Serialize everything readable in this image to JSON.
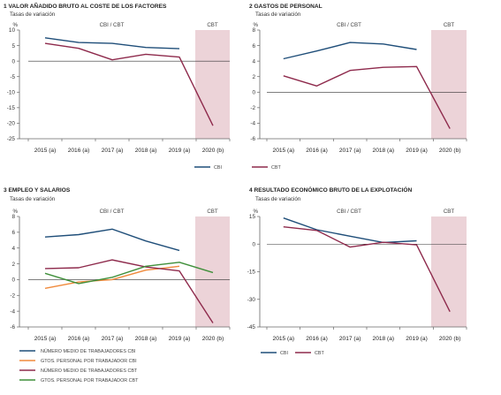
{
  "colors": {
    "cbi": "#1f4e79",
    "cbt": "#8e2a4c",
    "orange": "#f08a3c",
    "green": "#3f8f3a",
    "shade": "#ecd3d8",
    "axis": "#666666",
    "zero": "#333333"
  },
  "chart_data": [
    {
      "type": "line",
      "title": "1 VALOR AÑADIDO BRUTO AL COSTE DE LOS FACTORES",
      "subtitle": "Tasas de variación",
      "yunit": "%",
      "band_labels": [
        "CBI / CBT",
        "CBT"
      ],
      "categories": [
        "2015 (a)",
        "2016 (a)",
        "2017 (a)",
        "2018 (a)",
        "2019 (a)",
        "2020 (b)"
      ],
      "ylim": [
        -25,
        10
      ],
      "yticks": [
        10,
        5,
        0,
        -5,
        -10,
        -15,
        -20,
        -25
      ],
      "series": [
        {
          "name": "CBI",
          "color": "#1f4e79",
          "values": [
            7.5,
            6.0,
            5.7,
            4.4,
            4.0,
            null
          ]
        },
        {
          "name": "CBT",
          "color": "#8e2a4c",
          "values": [
            5.7,
            4.1,
            0.4,
            2.2,
            1.3,
            -20.8
          ]
        }
      ],
      "legend": [
        "CBI"
      ]
    },
    {
      "type": "line",
      "title": "2 GASTOS DE PERSONAL",
      "subtitle": "Tasas de variación",
      "yunit": "%",
      "band_labels": [
        "CBI / CBT",
        "CBT"
      ],
      "categories": [
        "2015 (a)",
        "2016 (a)",
        "2017 (a)",
        "2018 (a)",
        "2019 (a)",
        "2020 (b)"
      ],
      "ylim": [
        -6,
        8
      ],
      "yticks": [
        8,
        6,
        4,
        2,
        0,
        -2,
        -4,
        -6
      ],
      "series": [
        {
          "name": "CBI",
          "color": "#1f4e79",
          "values": [
            4.3,
            5.3,
            6.4,
            6.2,
            5.5,
            null
          ]
        },
        {
          "name": "CBT",
          "color": "#8e2a4c",
          "values": [
            2.1,
            0.8,
            2.8,
            3.2,
            3.3,
            -4.7
          ]
        }
      ],
      "legend": [
        "CBT"
      ]
    },
    {
      "type": "line",
      "title": "3 EMPLEO Y SALARIOS",
      "subtitle": "Tasas de variación",
      "yunit": "%",
      "band_labels": [
        "CBI / CBT",
        "CBT"
      ],
      "categories": [
        "2015 (a)",
        "2016 (a)",
        "2017 (a)",
        "2018 (a)",
        "2019 (a)",
        "2020 (b)"
      ],
      "ylim": [
        -6,
        8
      ],
      "yticks": [
        8,
        6,
        4,
        2,
        0,
        -2,
        -4,
        -6
      ],
      "series": [
        {
          "name": "NÚMERO MEDIO DE TRABAJADORES CBI",
          "color": "#1f4e79",
          "values": [
            5.4,
            5.7,
            6.4,
            4.9,
            3.7,
            null
          ]
        },
        {
          "name": "GTOS. PERSONAL POR TRABAJADOR CBI",
          "color": "#f08a3c",
          "values": [
            -1.1,
            -0.3,
            0.0,
            1.2,
            1.7,
            null
          ]
        },
        {
          "name": "NÚMERO MEDIO DE TRABAJADORES CBT",
          "color": "#8e2a4c",
          "values": [
            1.4,
            1.5,
            2.5,
            1.6,
            1.1,
            -5.5
          ]
        },
        {
          "name": "GTOS. PERSONAL POR TRABAJADOR CBT",
          "color": "#3f8f3a",
          "values": [
            0.8,
            -0.5,
            0.3,
            1.7,
            2.2,
            0.9
          ]
        }
      ],
      "legend": [
        "NÚMERO MEDIO DE TRABAJADORES CBI",
        "GTOS. PERSONAL POR TRABAJADOR CBI",
        "NÚMERO MEDIO DE TRABAJADORES CBT",
        "GTOS. PERSONAL POR TRABAJADOR CBT"
      ]
    },
    {
      "type": "line",
      "title": "4 RESULTADO ECONÓMICO BRUTO DE LA EXPLOTACIÓN",
      "subtitle": "Tasas de variación",
      "yunit": "%",
      "band_labels": [
        "CBI / CBT",
        "CBT"
      ],
      "categories": [
        "2015 (a)",
        "2016 (a)",
        "2017 (a)",
        "2018 (a)",
        "2019 (a)",
        "2020 (b)"
      ],
      "ylim": [
        -45,
        15
      ],
      "yticks": [
        15,
        0,
        -15,
        -30,
        -45
      ],
      "series": [
        {
          "name": "CBI",
          "color": "#1f4e79",
          "values": [
            14.2,
            7.8,
            4.3,
            0.9,
            1.8,
            null
          ]
        },
        {
          "name": "CBT",
          "color": "#8e2a4c",
          "values": [
            9.4,
            7.4,
            -1.6,
            1.0,
            -0.4,
            -36.7
          ]
        }
      ],
      "legend": [
        "CBI",
        "CBT"
      ]
    }
  ]
}
